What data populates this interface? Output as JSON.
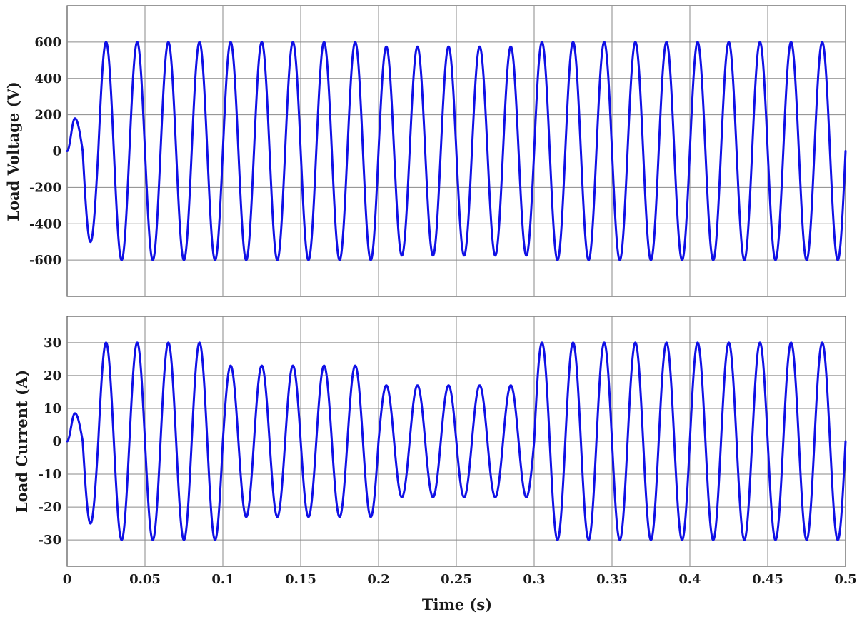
{
  "chart_data": [
    {
      "type": "line",
      "ylabel": "Load Voltage (V)",
      "xlabel": "",
      "xlim": [
        0,
        0.5
      ],
      "ylim": [
        -800,
        800
      ],
      "x_ticks": [
        0,
        0.05,
        0.1,
        0.15,
        0.2,
        0.25,
        0.3,
        0.35,
        0.4,
        0.45,
        0.5
      ],
      "x_tick_labels_shown": false,
      "y_ticks": [
        -600,
        -400,
        -200,
        0,
        200,
        400,
        600
      ],
      "y_tick_labels": [
        "-600",
        "-400",
        "-200",
        "0",
        "200",
        "400",
        "600"
      ],
      "grid": true,
      "series": [
        {
          "color": "#1010e6",
          "waveform": "sinusoid",
          "frequency_hz": 50,
          "segments": [
            {
              "t_start": 0.0,
              "t_end": 0.02,
              "peaks": [
                180,
                -500
              ]
            },
            {
              "t_start": 0.02,
              "t_end": 0.2,
              "amplitude": 600
            },
            {
              "t_start": 0.2,
              "t_end": 0.3,
              "amplitude": 575
            },
            {
              "t_start": 0.3,
              "t_end": 0.5,
              "amplitude": 600
            }
          ],
          "first_peaks": [
            {
              "x": 0.0065,
              "y": 180
            },
            {
              "x": 0.0155,
              "y": -500
            },
            {
              "x": 0.025,
              "y": 620
            },
            {
              "x": 0.035,
              "y": -610
            }
          ]
        }
      ]
    },
    {
      "type": "line",
      "ylabel": "Load Current (A)",
      "xlabel": "Time (s)",
      "xlim": [
        0,
        0.5
      ],
      "ylim": [
        -38,
        38
      ],
      "x_ticks": [
        0,
        0.05,
        0.1,
        0.15,
        0.2,
        0.25,
        0.3,
        0.35,
        0.4,
        0.45,
        0.5
      ],
      "x_tick_labels": [
        "0",
        "0.05",
        "0.1",
        "0.15",
        "0.2",
        "0.25",
        "0.3",
        "0.35",
        "0.4",
        "0.45",
        "0.5"
      ],
      "y_ticks": [
        -30,
        -20,
        -10,
        0,
        10,
        20,
        30
      ],
      "y_tick_labels": [
        "-30",
        "-20",
        "-10",
        "0",
        "10",
        "20",
        "30"
      ],
      "grid": true,
      "series": [
        {
          "color": "#1010e6",
          "waveform": "sinusoid",
          "frequency_hz": 50,
          "segments": [
            {
              "t_start": 0.0,
              "t_end": 0.02,
              "peaks": [
                8.5,
                -25
              ]
            },
            {
              "t_start": 0.02,
              "t_end": 0.1,
              "amplitude": 30
            },
            {
              "t_start": 0.1,
              "t_end": 0.2,
              "amplitude": 23
            },
            {
              "t_start": 0.2,
              "t_end": 0.3,
              "amplitude": 17
            },
            {
              "t_start": 0.3,
              "t_end": 0.5,
              "amplitude": 30
            }
          ],
          "peaks": [
            {
              "x": 0.0065,
              "y": 8.5
            },
            {
              "x": 0.0155,
              "y": -25
            },
            {
              "x": 0.025,
              "y": 31
            },
            {
              "x": 0.035,
              "y": -30.5
            },
            {
              "x": 0.105,
              "y": 26.5
            },
            {
              "x": 0.205,
              "y": 20.5
            },
            {
              "x": 0.305,
              "y": 24.5
            }
          ]
        }
      ]
    }
  ]
}
